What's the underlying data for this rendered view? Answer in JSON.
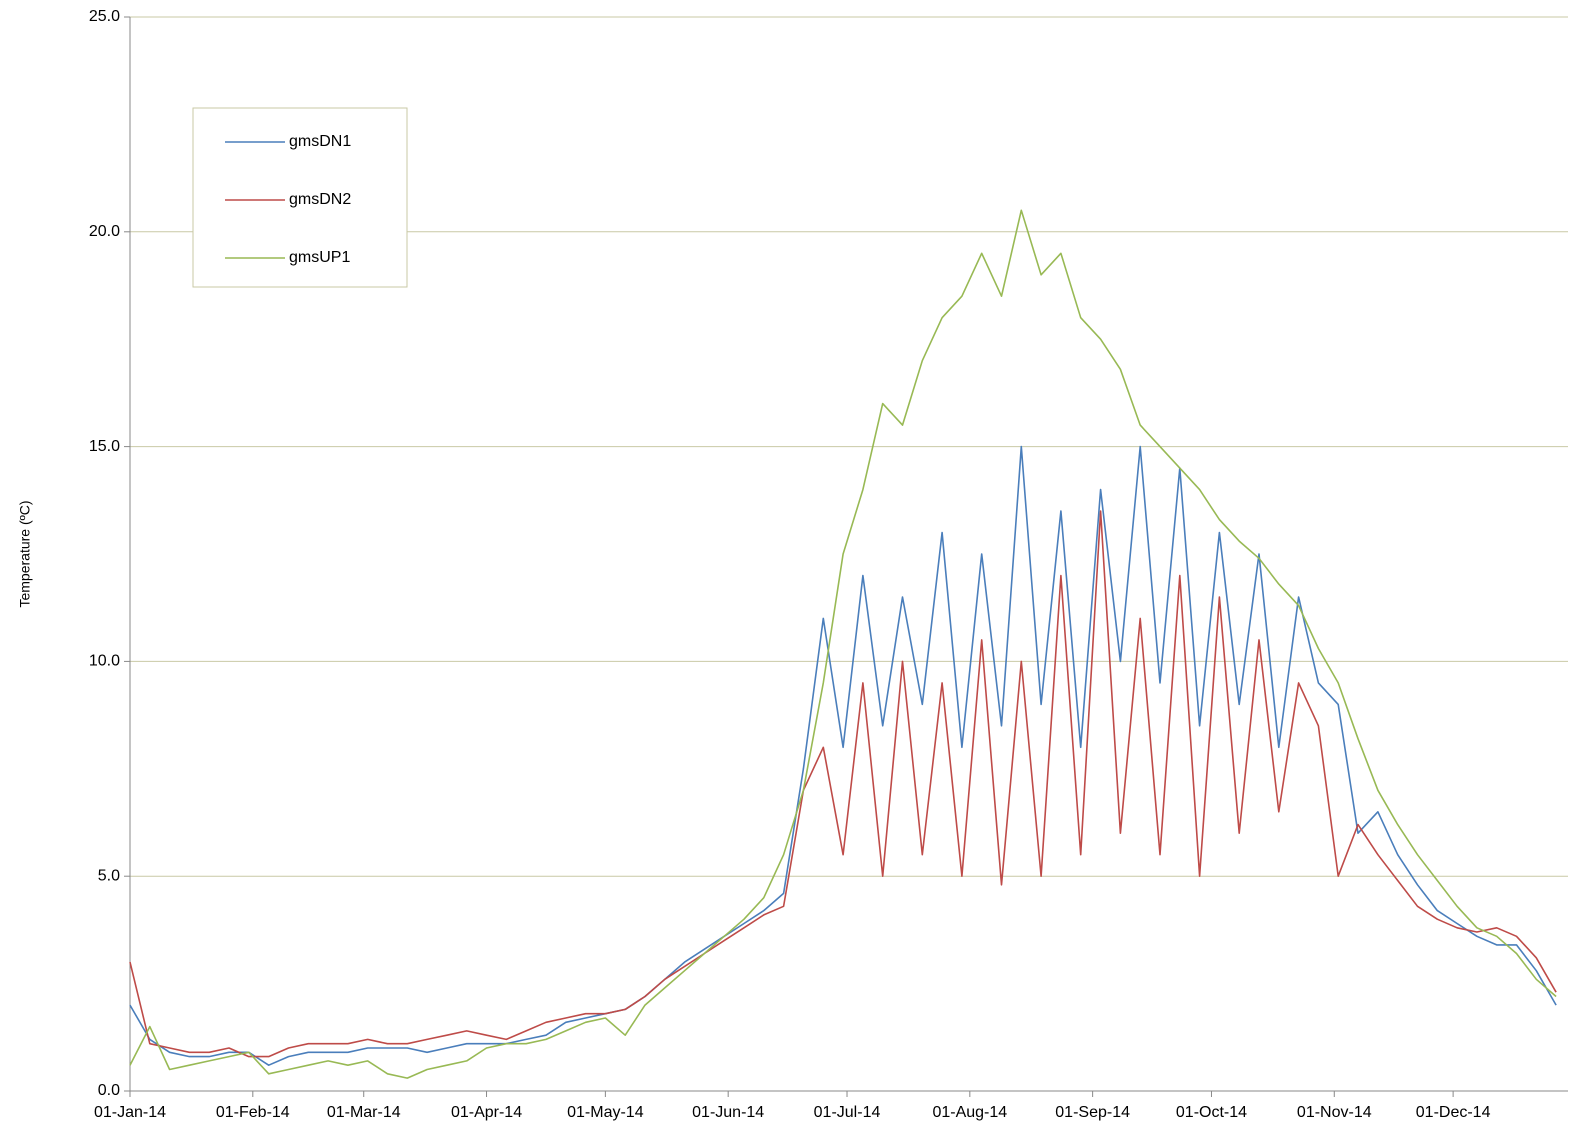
{
  "chart_data": {
    "type": "line",
    "y_label": "Temperature (ºC)",
    "x": [
      "2014-01-01",
      "2014-01-06",
      "2014-01-11",
      "2014-01-16",
      "2014-01-21",
      "2014-01-26",
      "2014-01-31",
      "2014-02-05",
      "2014-02-10",
      "2014-02-15",
      "2014-02-20",
      "2014-02-25",
      "2014-03-02",
      "2014-03-07",
      "2014-03-12",
      "2014-03-17",
      "2014-03-22",
      "2014-03-27",
      "2014-04-01",
      "2014-04-06",
      "2014-04-11",
      "2014-04-16",
      "2014-04-21",
      "2014-04-26",
      "2014-05-01",
      "2014-05-06",
      "2014-05-11",
      "2014-05-16",
      "2014-05-21",
      "2014-05-26",
      "2014-05-31",
      "2014-06-05",
      "2014-06-10",
      "2014-06-15",
      "2014-06-20",
      "2014-06-25",
      "2014-06-30",
      "2014-07-05",
      "2014-07-10",
      "2014-07-15",
      "2014-07-20",
      "2014-07-25",
      "2014-07-30",
      "2014-08-04",
      "2014-08-09",
      "2014-08-14",
      "2014-08-19",
      "2014-08-24",
      "2014-08-29",
      "2014-09-03",
      "2014-09-08",
      "2014-09-13",
      "2014-09-18",
      "2014-09-23",
      "2014-09-28",
      "2014-10-03",
      "2014-10-08",
      "2014-10-13",
      "2014-10-18",
      "2014-10-23",
      "2014-10-28",
      "2014-11-02",
      "2014-11-07",
      "2014-11-12",
      "2014-11-17",
      "2014-11-22",
      "2014-11-27",
      "2014-12-02",
      "2014-12-07",
      "2014-12-12",
      "2014-12-17",
      "2014-12-22",
      "2014-12-27"
    ],
    "series": [
      {
        "name": "gmsDN1",
        "color": "#4a7ebb",
        "values": [
          2.0,
          1.2,
          0.9,
          0.8,
          0.8,
          0.9,
          0.9,
          0.6,
          0.8,
          0.9,
          0.9,
          0.9,
          1.0,
          1.0,
          1.0,
          0.9,
          1.0,
          1.1,
          1.1,
          1.1,
          1.2,
          1.3,
          1.6,
          1.7,
          1.8,
          1.9,
          2.2,
          2.6,
          3.0,
          3.3,
          3.6,
          3.9,
          4.2,
          4.6,
          7.5,
          11.0,
          8.0,
          12.0,
          8.5,
          11.5,
          9.0,
          13.0,
          8.0,
          12.5,
          8.5,
          15.0,
          9.0,
          13.5,
          8.0,
          14.0,
          10.0,
          15.0,
          9.5,
          14.5,
          8.5,
          13.0,
          9.0,
          12.5,
          8.0,
          11.5,
          9.5,
          9.0,
          6.0,
          6.5,
          5.5,
          4.8,
          4.2,
          3.9,
          3.6,
          3.4,
          3.4,
          2.8,
          2.0
        ]
      },
      {
        "name": "gmsDN2",
        "color": "#be4b48",
        "values": [
          3.0,
          1.1,
          1.0,
          0.9,
          0.9,
          1.0,
          0.8,
          0.8,
          1.0,
          1.1,
          1.1,
          1.1,
          1.2,
          1.1,
          1.1,
          1.2,
          1.3,
          1.4,
          1.3,
          1.2,
          1.4,
          1.6,
          1.7,
          1.8,
          1.8,
          1.9,
          2.2,
          2.6,
          2.9,
          3.2,
          3.5,
          3.8,
          4.1,
          4.3,
          7.0,
          8.0,
          5.5,
          9.5,
          5.0,
          10.0,
          5.5,
          9.5,
          5.0,
          10.5,
          4.8,
          10.0,
          5.0,
          12.0,
          5.5,
          13.5,
          6.0,
          11.0,
          5.5,
          12.0,
          5.0,
          11.5,
          6.0,
          10.5,
          6.5,
          9.5,
          8.5,
          5.0,
          6.2,
          5.5,
          4.9,
          4.3,
          4.0,
          3.8,
          3.7,
          3.8,
          3.6,
          3.1,
          2.3
        ]
      },
      {
        "name": "gmsUP1",
        "color": "#98b954",
        "values": [
          0.6,
          1.5,
          0.5,
          0.6,
          0.7,
          0.8,
          0.9,
          0.4,
          0.5,
          0.6,
          0.7,
          0.6,
          0.7,
          0.4,
          0.3,
          0.5,
          0.6,
          0.7,
          1.0,
          1.1,
          1.1,
          1.2,
          1.4,
          1.6,
          1.7,
          1.3,
          2.0,
          2.4,
          2.8,
          3.2,
          3.6,
          4.0,
          4.5,
          5.5,
          7.0,
          9.5,
          12.5,
          14.0,
          16.0,
          15.5,
          17.0,
          18.0,
          18.5,
          19.5,
          18.5,
          20.5,
          19.0,
          19.5,
          18.0,
          17.5,
          16.8,
          15.5,
          15.0,
          14.5,
          14.0,
          13.3,
          12.8,
          12.4,
          11.8,
          11.3,
          10.3,
          9.5,
          8.2,
          7.0,
          6.2,
          5.5,
          4.9,
          4.3,
          3.8,
          3.6,
          3.2,
          2.6,
          2.2
        ]
      }
    ],
    "xlim": [
      "2014-01-01",
      "2014-12-30"
    ],
    "xticks": [
      {
        "value": "2014-01-01",
        "label": "01-Jan-14"
      },
      {
        "value": "2014-02-01",
        "label": "01-Feb-14"
      },
      {
        "value": "2014-03-01",
        "label": "01-Mar-14"
      },
      {
        "value": "2014-04-01",
        "label": "01-Apr-14"
      },
      {
        "value": "2014-05-01",
        "label": "01-May-14"
      },
      {
        "value": "2014-06-01",
        "label": "01-Jun-14"
      },
      {
        "value": "2014-07-01",
        "label": "01-Jul-14"
      },
      {
        "value": "2014-08-01",
        "label": "01-Aug-14"
      },
      {
        "value": "2014-09-01",
        "label": "01-Sep-14"
      },
      {
        "value": "2014-10-01",
        "label": "01-Oct-14"
      },
      {
        "value": "2014-11-01",
        "label": "01-Nov-14"
      },
      {
        "value": "2014-12-01",
        "label": "01-Dec-14"
      }
    ],
    "ylim": [
      0,
      25
    ],
    "yticks": [
      {
        "value": 0,
        "label": "0.0"
      },
      {
        "value": 5,
        "label": "5.0"
      },
      {
        "value": 10,
        "label": "10.0"
      },
      {
        "value": 15,
        "label": "15.0"
      },
      {
        "value": 20,
        "label": "20.0"
      },
      {
        "value": 25,
        "label": "25.0"
      }
    ],
    "grid": true,
    "legend_loc": "upper left"
  }
}
